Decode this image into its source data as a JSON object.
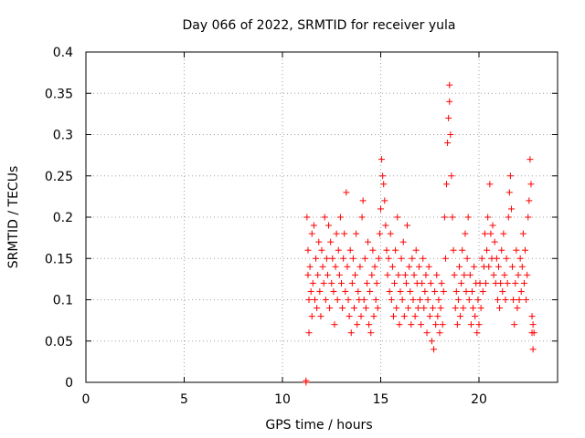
{
  "chart_data": {
    "type": "scatter",
    "title": "Day 066 of 2022, SRMTID for receiver yula",
    "xlabel": "GPS time / hours",
    "ylabel": "SRMTID / TECUs",
    "xlim": [
      0,
      24
    ],
    "ylim": [
      0,
      0.4
    ],
    "x_ticks": [
      0,
      5,
      10,
      15,
      20
    ],
    "y_ticks": [
      0,
      0.05,
      0.1,
      0.15,
      0.2,
      0.25,
      0.3,
      0.35,
      0.4
    ],
    "x_tick_labels": [
      "0",
      "5",
      "10",
      "15",
      "20"
    ],
    "y_tick_labels": [
      "0",
      "0.05",
      "0.1",
      "0.15",
      "0.2",
      "0.25",
      "0.3",
      "0.35",
      "0.4"
    ],
    "grid": true,
    "marker": "+",
    "color": "#ff0000",
    "points": [
      [
        11.2,
        0.0
      ],
      [
        11.2,
        0.002
      ],
      [
        11.25,
        0.2
      ],
      [
        11.3,
        0.13
      ],
      [
        11.3,
        0.16
      ],
      [
        11.35,
        0.06
      ],
      [
        11.35,
        0.1
      ],
      [
        11.4,
        0.14
      ],
      [
        11.45,
        0.11
      ],
      [
        11.5,
        0.08
      ],
      [
        11.5,
        0.18
      ],
      [
        11.55,
        0.12
      ],
      [
        11.6,
        0.19
      ],
      [
        11.65,
        0.1
      ],
      [
        11.7,
        0.15
      ],
      [
        11.75,
        0.09
      ],
      [
        11.8,
        0.13
      ],
      [
        11.85,
        0.17
      ],
      [
        11.9,
        0.11
      ],
      [
        11.95,
        0.08
      ],
      [
        12.0,
        0.16
      ],
      [
        12.05,
        0.14
      ],
      [
        12.1,
        0.12
      ],
      [
        12.15,
        0.2
      ],
      [
        12.2,
        0.1
      ],
      [
        12.25,
        0.15
      ],
      [
        12.3,
        0.13
      ],
      [
        12.35,
        0.19
      ],
      [
        12.4,
        0.09
      ],
      [
        12.45,
        0.17
      ],
      [
        12.5,
        0.12
      ],
      [
        12.55,
        0.15
      ],
      [
        12.6,
        0.11
      ],
      [
        12.65,
        0.07
      ],
      [
        12.7,
        0.14
      ],
      [
        12.75,
        0.18
      ],
      [
        12.8,
        0.1
      ],
      [
        12.85,
        0.16
      ],
      [
        12.9,
        0.13
      ],
      [
        12.95,
        0.2
      ],
      [
        13.0,
        0.12
      ],
      [
        13.05,
        0.09
      ],
      [
        13.1,
        0.15
      ],
      [
        13.15,
        0.18
      ],
      [
        13.2,
        0.11
      ],
      [
        13.25,
        0.23
      ],
      [
        13.3,
        0.14
      ],
      [
        13.35,
        0.1
      ],
      [
        13.4,
        0.08
      ],
      [
        13.45,
        0.16
      ],
      [
        13.5,
        0.06
      ],
      [
        13.55,
        0.12
      ],
      [
        13.6,
        0.15
      ],
      [
        13.65,
        0.09
      ],
      [
        13.7,
        0.13
      ],
      [
        13.75,
        0.18
      ],
      [
        13.8,
        0.07
      ],
      [
        13.85,
        0.11
      ],
      [
        13.9,
        0.1
      ],
      [
        13.95,
        0.14
      ],
      [
        14.0,
        0.08
      ],
      [
        14.05,
        0.2
      ],
      [
        14.1,
        0.22
      ],
      [
        14.15,
        0.1
      ],
      [
        14.2,
        0.15
      ],
      [
        14.25,
        0.09
      ],
      [
        14.3,
        0.12
      ],
      [
        14.35,
        0.17
      ],
      [
        14.4,
        0.07
      ],
      [
        14.45,
        0.11
      ],
      [
        14.5,
        0.06
      ],
      [
        14.55,
        0.13
      ],
      [
        14.6,
        0.16
      ],
      [
        14.65,
        0.08
      ],
      [
        14.7,
        0.14
      ],
      [
        14.75,
        0.1
      ],
      [
        14.8,
        0.12
      ],
      [
        14.85,
        0.09
      ],
      [
        14.9,
        0.15
      ],
      [
        14.95,
        0.18
      ],
      [
        15.0,
        0.21
      ],
      [
        15.05,
        0.27
      ],
      [
        15.1,
        0.25
      ],
      [
        15.15,
        0.24
      ],
      [
        15.2,
        0.22
      ],
      [
        15.25,
        0.19
      ],
      [
        15.3,
        0.16
      ],
      [
        15.35,
        0.13
      ],
      [
        15.4,
        0.15
      ],
      [
        15.45,
        0.11
      ],
      [
        15.5,
        0.18
      ],
      [
        15.55,
        0.1
      ],
      [
        15.6,
        0.14
      ],
      [
        15.65,
        0.08
      ],
      [
        15.7,
        0.12
      ],
      [
        15.75,
        0.16
      ],
      [
        15.8,
        0.09
      ],
      [
        15.85,
        0.2
      ],
      [
        15.9,
        0.13
      ],
      [
        15.95,
        0.07
      ],
      [
        16.0,
        0.11
      ],
      [
        16.05,
        0.15
      ],
      [
        16.1,
        0.1
      ],
      [
        16.15,
        0.17
      ],
      [
        16.2,
        0.08
      ],
      [
        16.25,
        0.13
      ],
      [
        16.3,
        0.12
      ],
      [
        16.35,
        0.19
      ],
      [
        16.4,
        0.09
      ],
      [
        16.45,
        0.14
      ],
      [
        16.5,
        0.11
      ],
      [
        16.55,
        0.07
      ],
      [
        16.6,
        0.15
      ],
      [
        16.65,
        0.1
      ],
      [
        16.7,
        0.13
      ],
      [
        16.75,
        0.08
      ],
      [
        16.8,
        0.16
      ],
      [
        16.85,
        0.12
      ],
      [
        16.9,
        0.09
      ],
      [
        16.95,
        0.14
      ],
      [
        17.0,
        0.1
      ],
      [
        17.05,
        0.07
      ],
      [
        17.1,
        0.12
      ],
      [
        17.15,
        0.15
      ],
      [
        17.2,
        0.09
      ],
      [
        17.25,
        0.11
      ],
      [
        17.3,
        0.13
      ],
      [
        17.35,
        0.06
      ],
      [
        17.4,
        0.1
      ],
      [
        17.45,
        0.14
      ],
      [
        17.5,
        0.08
      ],
      [
        17.55,
        0.12
      ],
      [
        17.6,
        0.05
      ],
      [
        17.65,
        0.09
      ],
      [
        17.7,
        0.04
      ],
      [
        17.75,
        0.11
      ],
      [
        17.8,
        0.07
      ],
      [
        17.85,
        0.13
      ],
      [
        17.9,
        0.08
      ],
      [
        17.95,
        0.1
      ],
      [
        18.0,
        0.06
      ],
      [
        18.05,
        0.09
      ],
      [
        18.1,
        0.12
      ],
      [
        18.15,
        0.07
      ],
      [
        18.2,
        0.11
      ],
      [
        18.25,
        0.2
      ],
      [
        18.3,
        0.15
      ],
      [
        18.35,
        0.24
      ],
      [
        18.4,
        0.29
      ],
      [
        18.45,
        0.32
      ],
      [
        18.5,
        0.36
      ],
      [
        18.5,
        0.34
      ],
      [
        18.55,
        0.3
      ],
      [
        18.6,
        0.25
      ],
      [
        18.65,
        0.2
      ],
      [
        18.7,
        0.16
      ],
      [
        18.75,
        0.13
      ],
      [
        18.8,
        0.09
      ],
      [
        18.85,
        0.11
      ],
      [
        18.9,
        0.07
      ],
      [
        18.95,
        0.1
      ],
      [
        19.0,
        0.14
      ],
      [
        19.05,
        0.08
      ],
      [
        19.1,
        0.12
      ],
      [
        19.15,
        0.16
      ],
      [
        19.2,
        0.09
      ],
      [
        19.25,
        0.13
      ],
      [
        19.3,
        0.18
      ],
      [
        19.35,
        0.11
      ],
      [
        19.4,
        0.15
      ],
      [
        19.45,
        0.2
      ],
      [
        19.5,
        0.1
      ],
      [
        19.55,
        0.13
      ],
      [
        19.6,
        0.07
      ],
      [
        19.65,
        0.11
      ],
      [
        19.7,
        0.09
      ],
      [
        19.75,
        0.14
      ],
      [
        19.8,
        0.08
      ],
      [
        19.85,
        0.12
      ],
      [
        19.9,
        0.06
      ],
      [
        19.95,
        0.1
      ],
      [
        20.0,
        0.07
      ],
      [
        20.05,
        0.12
      ],
      [
        20.1,
        0.09
      ],
      [
        20.15,
        0.15
      ],
      [
        20.2,
        0.11
      ],
      [
        20.25,
        0.14
      ],
      [
        20.3,
        0.18
      ],
      [
        20.35,
        0.12
      ],
      [
        20.4,
        0.16
      ],
      [
        20.45,
        0.2
      ],
      [
        20.5,
        0.14
      ],
      [
        20.55,
        0.24
      ],
      [
        20.6,
        0.18
      ],
      [
        20.65,
        0.15
      ],
      [
        20.7,
        0.19
      ],
      [
        20.75,
        0.13
      ],
      [
        20.8,
        0.17
      ],
      [
        20.85,
        0.12
      ],
      [
        20.9,
        0.15
      ],
      [
        20.95,
        0.1
      ],
      [
        21.0,
        0.14
      ],
      [
        21.05,
        0.09
      ],
      [
        21.1,
        0.12
      ],
      [
        21.15,
        0.16
      ],
      [
        21.2,
        0.11
      ],
      [
        21.25,
        0.18
      ],
      [
        21.3,
        0.13
      ],
      [
        21.35,
        0.1
      ],
      [
        21.4,
        0.15
      ],
      [
        21.45,
        0.12
      ],
      [
        21.5,
        0.2
      ],
      [
        21.55,
        0.23
      ],
      [
        21.6,
        0.25
      ],
      [
        21.65,
        0.21
      ],
      [
        21.7,
        0.14
      ],
      [
        21.75,
        0.1
      ],
      [
        21.8,
        0.07
      ],
      [
        21.85,
        0.12
      ],
      [
        21.9,
        0.16
      ],
      [
        21.95,
        0.09
      ],
      [
        22.0,
        0.13
      ],
      [
        22.05,
        0.1
      ],
      [
        22.1,
        0.15
      ],
      [
        22.15,
        0.11
      ],
      [
        22.2,
        0.14
      ],
      [
        22.25,
        0.18
      ],
      [
        22.3,
        0.12
      ],
      [
        22.35,
        0.16
      ],
      [
        22.4,
        0.1
      ],
      [
        22.45,
        0.13
      ],
      [
        22.5,
        0.2
      ],
      [
        22.55,
        0.22
      ],
      [
        22.6,
        0.27
      ],
      [
        22.65,
        0.24
      ],
      [
        22.7,
        0.08
      ],
      [
        22.7,
        0.06
      ],
      [
        22.75,
        0.07
      ],
      [
        22.75,
        0.04
      ],
      [
        22.8,
        0.06
      ]
    ]
  }
}
